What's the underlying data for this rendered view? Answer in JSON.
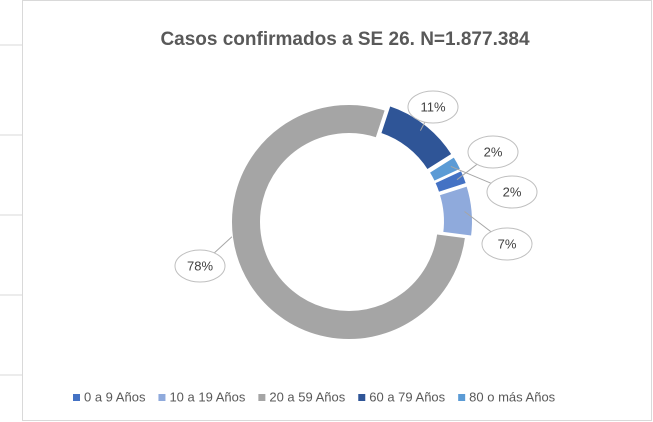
{
  "chart_data": {
    "type": "doughnut",
    "title": "Casos confirmados a SE 26. N=1.877.384",
    "categories": [
      "0 a 9 Años",
      "10 a 19 Años",
      "20 a 59 Años",
      "60 a 79 Años",
      "80 o más Años"
    ],
    "values": [
      2,
      7,
      78,
      11,
      2
    ],
    "value_labels": [
      "2%",
      "7%",
      "78%",
      "11%",
      "2%"
    ],
    "colors": [
      "#4472c4",
      "#8faadc",
      "#a5a5a5",
      "#2f5597",
      "#5b9bd5"
    ],
    "legend": "bottom"
  }
}
